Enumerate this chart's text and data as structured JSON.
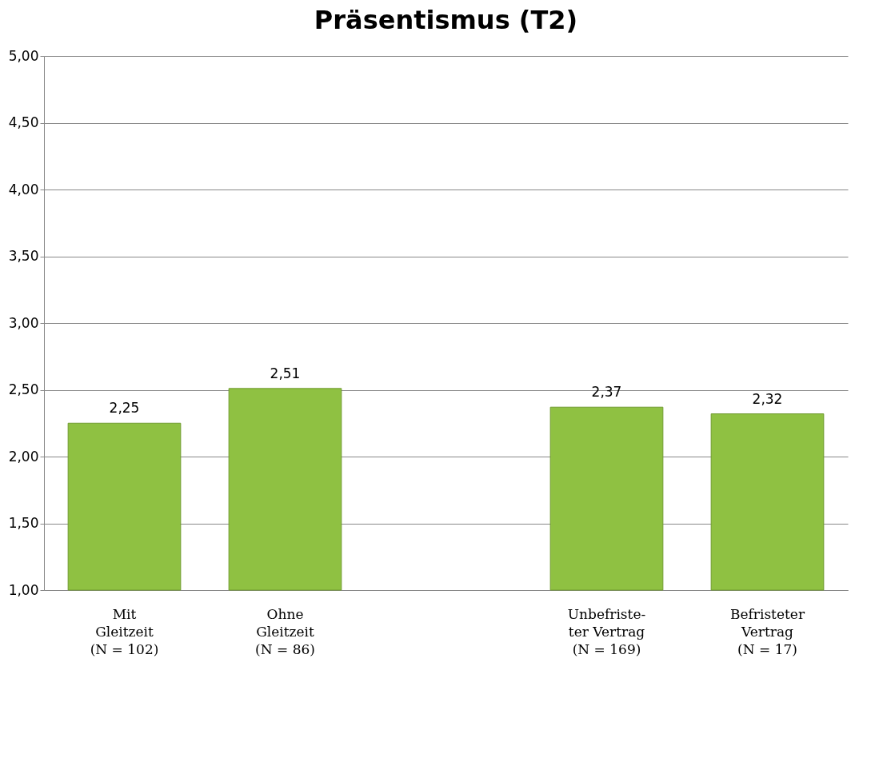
{
  "chart_data": {
    "type": "bar",
    "title": "Präsentismus (T2)",
    "categories": [
      "Mit\nGleitzeit\n(N = 102)",
      "Ohne\nGleitzeit\n(N = 86)",
      null,
      "Unbefriste-\nter Vertrag\n(N = 169)",
      "Befristeter\nVertrag\n(N = 17)"
    ],
    "values": [
      2.25,
      2.51,
      null,
      2.37,
      2.32
    ],
    "value_labels": [
      "2,25",
      "2,51",
      null,
      "2,37",
      "2,32"
    ],
    "color": "#8fc142",
    "ylim": [
      1,
      5
    ],
    "yticks": [
      {
        "value": 1,
        "label": "1,00"
      },
      {
        "value": 1.5,
        "label": "1,50"
      },
      {
        "value": 2,
        "label": "2,00"
      },
      {
        "value": 2.5,
        "label": "2,50"
      },
      {
        "value": 3,
        "label": "3,00"
      },
      {
        "value": 3.5,
        "label": "3,50"
      },
      {
        "value": 4,
        "label": "4,00"
      },
      {
        "value": 4.5,
        "label": "4,50"
      },
      {
        "value": 5,
        "label": "5,00"
      }
    ],
    "grid": "y"
  }
}
